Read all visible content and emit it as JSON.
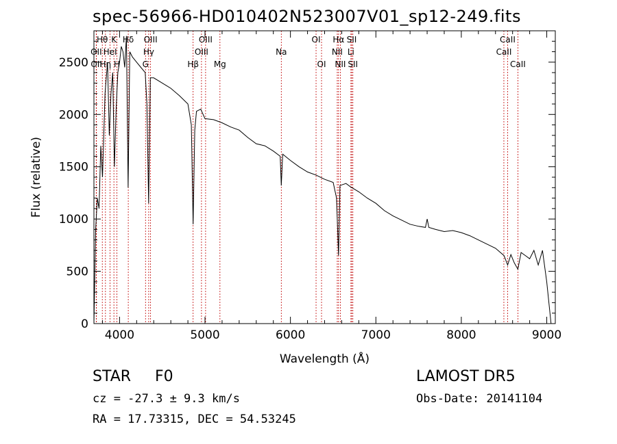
{
  "title": "spec-56966-HD010402N523007V01_sp12-249.fits",
  "footer": {
    "class_label": "STAR",
    "subclass": "F0",
    "survey": "LAMOST DR5",
    "cz": "cz = -27.3 ± 9.3 km/s",
    "obs_date": "Obs-Date: 20141104",
    "radec": "RA =  17.73315, DEC =  54.53245"
  },
  "colors": {
    "spectrum": "#000000",
    "line_markers": "#c00000"
  },
  "chart_data": {
    "type": "line",
    "xlabel": "Wavelength (Å)",
    "ylabel": "Flux (relative)",
    "xlim": [
      3700,
      9100
    ],
    "ylim": [
      0,
      2800
    ],
    "xticks": [
      4000,
      5000,
      6000,
      7000,
      8000,
      9000
    ],
    "yticks": [
      0,
      500,
      1000,
      1500,
      2000,
      2500
    ],
    "grid": false,
    "line_markers": [
      {
        "label": "Hθ",
        "x": 3798,
        "row": 0
      },
      {
        "label": "OII",
        "x": 3727,
        "row": 1
      },
      {
        "label": "OII",
        "x": 3729,
        "row": 2
      },
      {
        "label": "K",
        "x": 3934,
        "row": 0
      },
      {
        "label": "HeI",
        "x": 3889,
        "row": 1
      },
      {
        "label": "Hη",
        "x": 3835,
        "row": 2
      },
      {
        "label": "H",
        "x": 3969,
        "row": 2
      },
      {
        "label": "Hδ",
        "x": 4102,
        "row": 0
      },
      {
        "label": "G",
        "x": 4304,
        "row": 2
      },
      {
        "label": "OIII",
        "x": 4363,
        "row": 0
      },
      {
        "label": "Hγ",
        "x": 4341,
        "row": 1
      },
      {
        "label": "Hβ",
        "x": 4861,
        "row": 2
      },
      {
        "label": "OIII",
        "x": 5007,
        "row": 0
      },
      {
        "label": "OIII",
        "x": 4959,
        "row": 1
      },
      {
        "label": "Mg",
        "x": 5175,
        "row": 2
      },
      {
        "label": "Na",
        "x": 5893,
        "row": 1
      },
      {
        "label": "OI",
        "x": 6300,
        "row": 0
      },
      {
        "label": "OI",
        "x": 6364,
        "row": 2
      },
      {
        "label": "Hα",
        "x": 6563,
        "row": 0
      },
      {
        "label": "NII",
        "x": 6548,
        "row": 1
      },
      {
        "label": "NII",
        "x": 6584,
        "row": 2
      },
      {
        "label": "SII",
        "x": 6717,
        "row": 0
      },
      {
        "label": "Li",
        "x": 6708,
        "row": 1
      },
      {
        "label": "SII",
        "x": 6731,
        "row": 2
      },
      {
        "label": "CaII",
        "x": 8542,
        "row": 0
      },
      {
        "label": "CaII",
        "x": 8498,
        "row": 1
      },
      {
        "label": "CaII",
        "x": 8662,
        "row": 2
      }
    ],
    "series": [
      {
        "x": [
          3700,
          3720,
          3740,
          3760,
          3780,
          3800,
          3830,
          3860,
          3880,
          3900,
          3920,
          3940,
          3960,
          3980,
          4000,
          4020,
          4040,
          4060,
          4080,
          4100,
          4120,
          4150,
          4200,
          4250,
          4300,
          4320,
          4340,
          4360,
          4380,
          4400,
          4500,
          4600,
          4700,
          4800,
          4840,
          4861,
          4880,
          4900,
          4950,
          5000,
          5100,
          5200,
          5300,
          5400,
          5500,
          5600,
          5700,
          5800,
          5880,
          5893,
          5910,
          6000,
          6100,
          6200,
          6300,
          6400,
          6500,
          6540,
          6563,
          6580,
          6650,
          6700,
          6800,
          6900,
          7000,
          7100,
          7200,
          7300,
          7400,
          7500,
          7580,
          7600,
          7620,
          7700,
          7800,
          7900,
          8000,
          8100,
          8200,
          8300,
          8400,
          8500,
          8542,
          8580,
          8620,
          8662,
          8700,
          8750,
          8800,
          8850,
          8900,
          8950,
          9000,
          9050
        ],
        "y": [
          0,
          900,
          1200,
          1100,
          1700,
          1400,
          2200,
          2500,
          1800,
          2200,
          2400,
          1500,
          2050,
          2400,
          2500,
          2650,
          2600,
          2450,
          2750,
          1300,
          2600,
          2550,
          2500,
          2450,
          2400,
          2100,
          1150,
          2350,
          2350,
          2350,
          2300,
          2250,
          2180,
          2100,
          1900,
          950,
          1850,
          2030,
          2050,
          1960,
          1950,
          1920,
          1880,
          1850,
          1780,
          1720,
          1700,
          1650,
          1600,
          1320,
          1620,
          1560,
          1500,
          1450,
          1420,
          1380,
          1350,
          1200,
          650,
          1320,
          1340,
          1310,
          1260,
          1200,
          1150,
          1080,
          1030,
          990,
          950,
          930,
          920,
          1000,
          920,
          900,
          880,
          890,
          870,
          840,
          800,
          760,
          720,
          650,
          560,
          660,
          580,
          520,
          680,
          650,
          620,
          700,
          560,
          700,
          400,
          0
        ]
      }
    ]
  }
}
